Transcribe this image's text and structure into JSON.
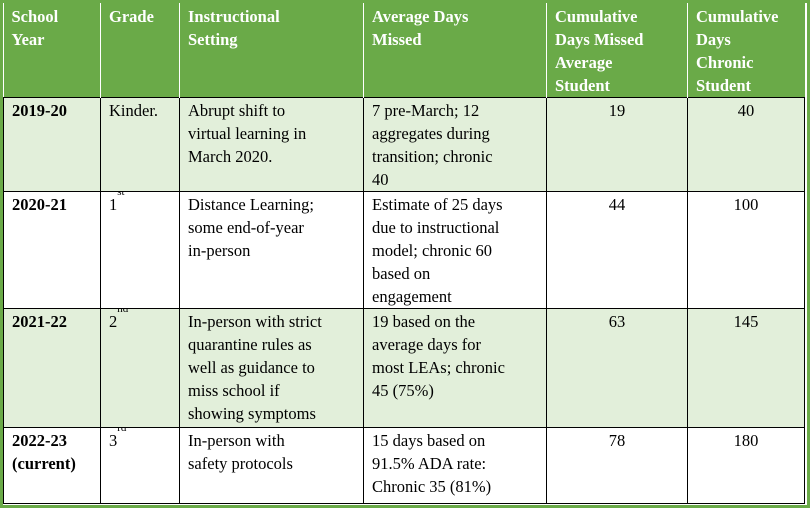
{
  "columns": [
    {
      "lines": [
        "School",
        "Year"
      ]
    },
    {
      "lines": [
        "Grade"
      ]
    },
    {
      "lines": [
        "Instructional",
        "Setting"
      ]
    },
    {
      "lines": [
        "Average Days",
        "Missed"
      ]
    },
    {
      "lines": [
        "Cumulative",
        "Days Missed",
        "Average",
        "Student"
      ]
    },
    {
      "lines": [
        "Cumulative",
        "Days",
        "Chronic",
        "Student"
      ]
    }
  ],
  "rows": [
    {
      "year_lines": [
        "2019-20"
      ],
      "grade_text": "Kinder.",
      "grade_sup": "",
      "setting_lines": [
        "Abrupt shift to",
        "virtual learning in",
        "March 2020."
      ],
      "avg_lines": [
        "7 pre-March; 12",
        "aggregates during",
        "transition; chronic",
        "40"
      ],
      "cum_avg": "19",
      "cum_chronic": "40"
    },
    {
      "year_lines": [
        "2020-21"
      ],
      "grade_text": "1",
      "grade_sup": "st",
      "setting_lines": [
        "Distance Learning;",
        "some end-of-year",
        "in-person"
      ],
      "avg_lines": [
        "Estimate of 25 days",
        "due to instructional",
        "model; chronic 60",
        "based on",
        "engagement"
      ],
      "cum_avg": "44",
      "cum_chronic": "100"
    },
    {
      "year_lines": [
        "2021-22"
      ],
      "grade_text": "2",
      "grade_sup": "nd",
      "setting_lines": [
        "In-person with strict",
        "quarantine rules as",
        "well as guidance to",
        "miss school if",
        "showing symptoms"
      ],
      "avg_lines": [
        "19 based on the",
        "average days for",
        "most LEAs; chronic",
        "45 (75%)"
      ],
      "cum_avg": "63",
      "cum_chronic": "145"
    },
    {
      "year_lines": [
        "2022-23",
        "(current)"
      ],
      "grade_text": "3",
      "grade_sup": "rd",
      "setting_lines": [
        "In-person with",
        "safety protocols"
      ],
      "avg_lines": [
        "15 days based on",
        "91.5% ADA rate:",
        "Chronic 35 (81%)"
      ],
      "cum_avg": "78",
      "cum_chronic": "180"
    }
  ],
  "colors": {
    "header": "#6aaa48",
    "shade": "#e2efda",
    "header_text": "#ffffff"
  }
}
